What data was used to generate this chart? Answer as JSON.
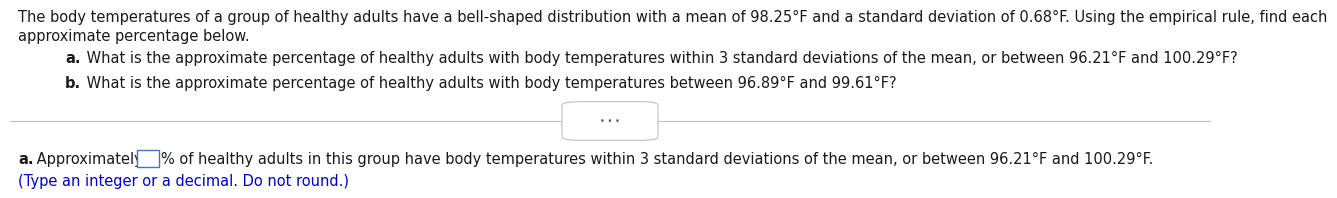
{
  "bg_color": "#ffffff",
  "text_color": "#1a1a1a",
  "blue_color": "#0000cc",
  "paragraph1_line1": "The body temperatures of a group of healthy adults have a bell-shaped distribution with a mean of 98.25°F and a standard deviation of 0.68°F. Using the empirical rule, find each",
  "paragraph1_line2": "approximate percentage below.",
  "item_a_bold": "a.",
  "item_a_text": " What is the approximate percentage of healthy adults with body temperatures within 3 standard deviations of the mean, or between 96.21°F and 100.29°F?",
  "item_b_bold": "b.",
  "item_b_text": " What is the approximate percentage of healthy adults with body temperatures between 96.89°F and 99.61°F?",
  "ans_a_bold": "a.",
  "ans_a_text1": " Approximately ",
  "ans_a_text2": "% of healthy adults in this group have body temperatures within 3 standard deviations of the mean, or between 96.21°F and 100.29°F.",
  "answer_note": "(Type an integer or a decimal. Do not round.)",
  "font_size_main": 10.5,
  "divider_color": "#c0c0c0",
  "box_color": "#4472c4"
}
